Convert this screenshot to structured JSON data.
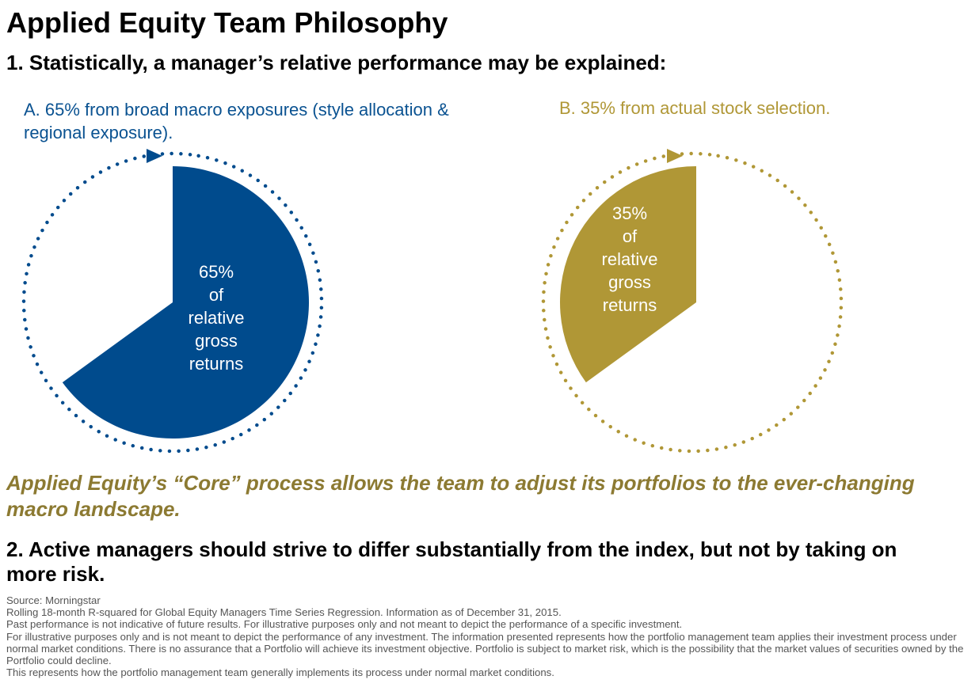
{
  "title": "Applied Equity Team Philosophy",
  "point1": "1. Statistically, a manager’s relative performance may be explained:",
  "chart_data": [
    {
      "type": "pie",
      "caption": "A. 65% from broad macro exposures (style allocation & regional exposure).",
      "highlighted_value": 65,
      "total": 100,
      "label_lines": [
        "65%",
        "of",
        "relative",
        "gross",
        "returns"
      ],
      "color": "#004b8d"
    },
    {
      "type": "pie",
      "caption": "B. 35% from actual stock selection.",
      "highlighted_value": 35,
      "offset_value": 65,
      "total": 100,
      "label_lines": [
        "35%",
        "of",
        "relative",
        "gross",
        "returns"
      ],
      "color": "#b09736"
    }
  ],
  "core_statement": "Applied Equity’s “Core” process allows the team to adjust its portfolios to the ever-changing macro landscape.",
  "point2": "2. Active managers should strive to differ substantially from the index, but not by taking on more risk.",
  "footnotes": [
    "Source: Morningstar",
    "Rolling 18-month R-squared for Global Equity Managers Time Series Regression. Information as of December 31, 2015.",
    "Past performance is not indicative of future results. For illustrative purposes only and not meant to depict the performance of a specific investment.",
    "For illustrative purposes only and is not meant to depict the performance of any investment. The information presented represents how the portfolio management team applies their investment process under normal market conditions. There is no assurance that a Portfolio will achieve its investment objective. Portfolio is subject to market risk, which is the possibility that the market values of securities owned by the Portfolio could decline.",
    "This represents how the portfolio management team generally implements its process under normal market conditions."
  ]
}
